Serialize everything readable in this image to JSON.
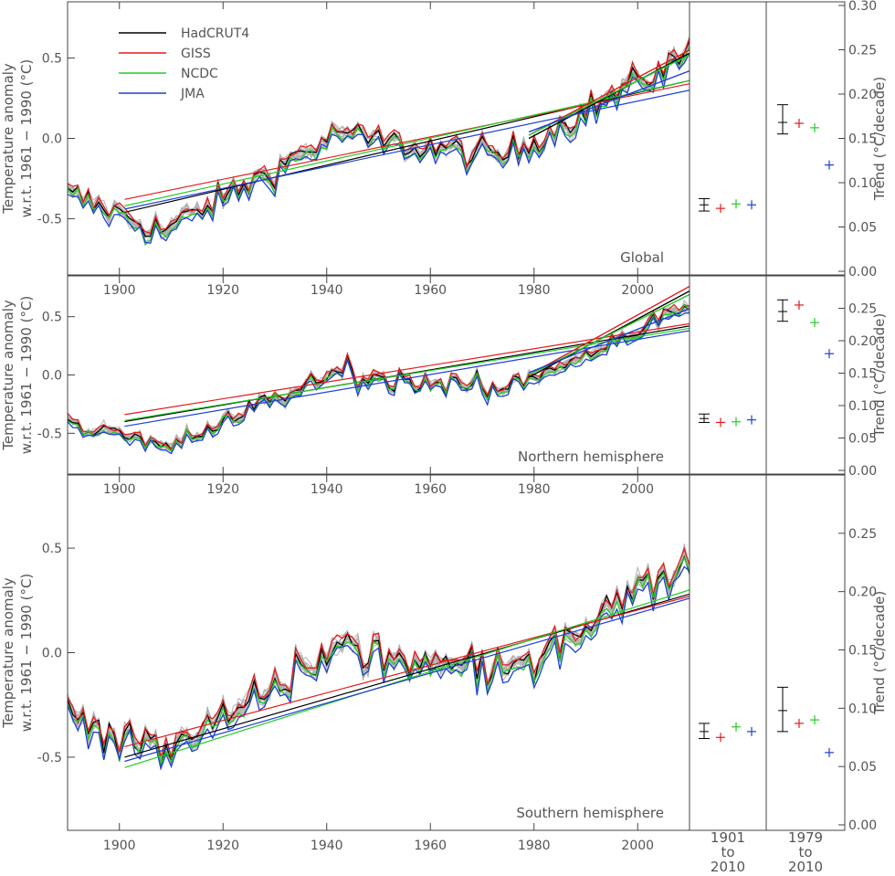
{
  "chart_data": [
    {
      "type": "line",
      "panel_label": "Global",
      "ylabel": "Temperature anomaly w.r.t. 1961 − 1990 (°C)",
      "ylabel_line1": "Temperature anomaly",
      "ylabel_line2": "w.r.t. 1961 − 1990 (°C)",
      "xlim": [
        1890,
        2010
      ],
      "ylim": [
        -0.85,
        0.85
      ],
      "x_ticks": [
        "1900",
        "1920",
        "1940",
        "1960",
        "1980",
        "2000"
      ],
      "y_ticks": [
        "0.5",
        "0.0",
        "-0.5"
      ],
      "legend": {
        "placement": "top-left",
        "entries": [
          "HadCRUT4",
          "GISS",
          "NCDC",
          "JMA"
        ]
      },
      "ensemble_color": "#b0b0b0",
      "series": [
        {
          "name": "HadCRUT4",
          "color": "#000000"
        },
        {
          "name": "GISS",
          "color": "#e41a1c"
        },
        {
          "name": "NCDC",
          "color": "#22cc22"
        },
        {
          "name": "JMA",
          "color": "#1f3fd6"
        }
      ],
      "trend_lines_1901_2010": [
        {
          "series": "HadCRUT4",
          "start": -0.46,
          "end": 0.36
        },
        {
          "series": "GISS",
          "start": -0.38,
          "end": 0.34
        },
        {
          "series": "NCDC",
          "start": -0.42,
          "end": 0.36
        },
        {
          "series": "JMA",
          "start": -0.44,
          "end": 0.3
        }
      ],
      "trend_lines_1979_2010": [
        {
          "series": "HadCRUT4",
          "start": 0.0,
          "end": 0.53
        },
        {
          "series": "GISS",
          "start": 0.02,
          "end": 0.55
        },
        {
          "series": "NCDC",
          "start": 0.02,
          "end": 0.52
        },
        {
          "series": "JMA",
          "start": 0.04,
          "end": 0.42
        }
      ]
    },
    {
      "type": "line",
      "panel_label": "Northern hemisphere",
      "ylabel": "Temperature anomaly w.r.t. 1961 − 1990 (°C)",
      "ylabel_line1": "Temperature anomaly",
      "ylabel_line2": "w.r.t. 1961 − 1990 (°C)",
      "xlim": [
        1890,
        2010
      ],
      "ylim": [
        -0.85,
        0.85
      ],
      "x_ticks": [
        "1900",
        "1920",
        "1940",
        "1960",
        "1980",
        "2000"
      ],
      "y_ticks": [
        "0.5",
        "0.0",
        "-0.5"
      ],
      "ensemble_color": "#b0b0b0",
      "series": [
        {
          "name": "HadCRUT4",
          "color": "#000000"
        },
        {
          "name": "GISS",
          "color": "#e41a1c"
        },
        {
          "name": "NCDC",
          "color": "#22cc22"
        },
        {
          "name": "JMA",
          "color": "#1f3fd6"
        }
      ],
      "trend_lines_1901_2010": [
        {
          "series": "HadCRUT4",
          "start": -0.4,
          "end": 0.42
        },
        {
          "series": "GISS",
          "start": -0.34,
          "end": 0.44
        },
        {
          "series": "NCDC",
          "start": -0.39,
          "end": 0.4
        },
        {
          "series": "JMA",
          "start": -0.44,
          "end": 0.38
        }
      ],
      "trend_lines_1979_2010": [
        {
          "series": "HadCRUT4",
          "start": -0.02,
          "end": 0.72
        },
        {
          "series": "GISS",
          "start": 0.0,
          "end": 0.76
        },
        {
          "series": "NCDC",
          "start": 0.0,
          "end": 0.69
        },
        {
          "series": "JMA",
          "start": 0.02,
          "end": 0.57
        }
      ]
    },
    {
      "type": "line",
      "panel_label": "Southern hemisphere",
      "ylabel": "Temperature anomaly w.r.t. 1961 − 1990 (°C)",
      "ylabel_line1": "Temperature anomaly",
      "ylabel_line2": "w.r.t. 1961 − 1990 (°C)",
      "xlim": [
        1890,
        2010
      ],
      "ylim": [
        -0.85,
        0.85
      ],
      "x_ticks": [
        "1900",
        "1920",
        "1940",
        "1960",
        "1980",
        "2000"
      ],
      "y_ticks": [
        "0.5",
        "0.0",
        "-0.5"
      ],
      "ensemble_color": "#b0b0b0",
      "series": [
        {
          "name": "HadCRUT4",
          "color": "#000000"
        },
        {
          "name": "GISS",
          "color": "#e41a1c"
        },
        {
          "name": "NCDC",
          "color": "#22cc22"
        },
        {
          "name": "JMA",
          "color": "#1f3fd6"
        }
      ],
      "trend_lines_1901_2010": [
        {
          "series": "HadCRUT4",
          "start": -0.5,
          "end": 0.28
        },
        {
          "series": "GISS",
          "start": -0.45,
          "end": 0.27
        },
        {
          "series": "NCDC",
          "start": -0.55,
          "end": 0.3
        },
        {
          "series": "JMA",
          "start": -0.52,
          "end": 0.26
        }
      ],
      "trend_lines_1979_2010": []
    },
    {
      "type": "scatter",
      "chart_role": "trend-comparison",
      "ylabel": "Trend (°C/decade)",
      "column_labels": [
        [
          "1901",
          "to",
          "2010"
        ],
        [
          "1979",
          "to",
          "2010"
        ]
      ],
      "panels": [
        {
          "region": "Global",
          "ylim": [
            0.0,
            0.3
          ],
          "y_ticks": [
            "0.30",
            "0.25",
            "0.20",
            "0.15",
            "0.10",
            "0.05",
            "0.00"
          ],
          "period_1901_2010": [
            {
              "series": "HadCRUT4",
              "value": 0.075,
              "low": 0.068,
              "high": 0.082
            },
            {
              "series": "GISS",
              "value": 0.071
            },
            {
              "series": "NCDC",
              "value": 0.076
            },
            {
              "series": "JMA",
              "value": 0.075
            }
          ],
          "period_1979_2010": [
            {
              "series": "HadCRUT4",
              "value": 0.168,
              "low": 0.155,
              "high": 0.188
            },
            {
              "series": "GISS",
              "value": 0.167
            },
            {
              "series": "NCDC",
              "value": 0.162
            },
            {
              "series": "JMA",
              "value": 0.12
            }
          ]
        },
        {
          "region": "Northern hemisphere",
          "ylim": [
            0.0,
            0.3
          ],
          "y_ticks": [
            "0.25",
            "0.20",
            "0.15",
            "0.10",
            "0.05",
            "0.00"
          ],
          "period_1901_2010": [
            {
              "series": "HadCRUT4",
              "value": 0.08,
              "low": 0.074,
              "high": 0.087
            },
            {
              "series": "GISS",
              "value": 0.074
            },
            {
              "series": "NCDC",
              "value": 0.075
            },
            {
              "series": "JMA",
              "value": 0.078
            }
          ],
          "period_1979_2010": [
            {
              "series": "HadCRUT4",
              "value": 0.245,
              "low": 0.23,
              "high": 0.263
            },
            {
              "series": "GISS",
              "value": 0.255
            },
            {
              "series": "NCDC",
              "value": 0.228
            },
            {
              "series": "JMA",
              "value": 0.18
            }
          ]
        },
        {
          "region": "Southern hemisphere",
          "ylim": [
            0.0,
            0.3
          ],
          "y_ticks": [
            "0.25",
            "0.20",
            "0.15",
            "0.10",
            "0.05",
            "0.00"
          ],
          "period_1901_2010": [
            {
              "series": "HadCRUT4",
              "value": 0.08,
              "low": 0.074,
              "high": 0.087
            },
            {
              "series": "GISS",
              "value": 0.075
            },
            {
              "series": "NCDC",
              "value": 0.084
            },
            {
              "series": "JMA",
              "value": 0.08
            }
          ],
          "period_1979_2010": [
            {
              "series": "HadCRUT4",
              "value": 0.098,
              "low": 0.08,
              "high": 0.118
            },
            {
              "series": "GISS",
              "value": 0.087
            },
            {
              "series": "NCDC",
              "value": 0.09
            },
            {
              "series": "JMA",
              "value": 0.062
            }
          ]
        }
      ]
    }
  ]
}
